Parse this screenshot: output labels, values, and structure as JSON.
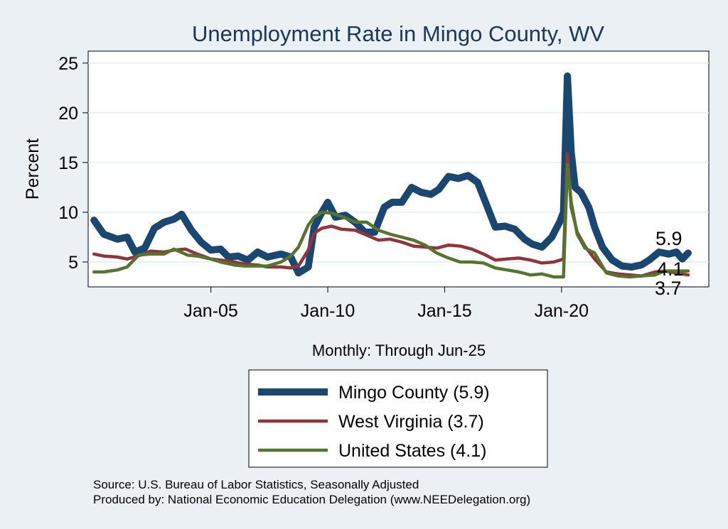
{
  "chart_data": {
    "type": "line",
    "title": "Unemployment Rate in Mingo  County, WV",
    "ylabel": "Percent",
    "xlabel": "Monthly: Through Jun-25",
    "ylim": [
      2.5,
      26.2
    ],
    "y_ticks": [
      5,
      10,
      15,
      20,
      25
    ],
    "x_ticks": [
      "Jan-05",
      "Jan-10",
      "Jan-15",
      "Jan-20"
    ],
    "x_range": [
      "2000-01",
      "2025-06"
    ],
    "grid": true,
    "legend_position": "bottom",
    "series": [
      {
        "name": "Mingo  County (5.9)",
        "color": "#1a476f",
        "end_label": "5.9",
        "points": [
          [
            "2000-01",
            9.2
          ],
          [
            "2000-06",
            7.8
          ],
          [
            "2001-01",
            7.3
          ],
          [
            "2001-06",
            7.5
          ],
          [
            "2001-10",
            6.0
          ],
          [
            "2002-03",
            6.4
          ],
          [
            "2002-08",
            8.4
          ],
          [
            "2003-01",
            9.0
          ],
          [
            "2003-06",
            9.3
          ],
          [
            "2003-10",
            9.8
          ],
          [
            "2004-03",
            8.2
          ],
          [
            "2004-08",
            7.0
          ],
          [
            "2005-01",
            6.2
          ],
          [
            "2005-06",
            6.3
          ],
          [
            "2005-10",
            5.5
          ],
          [
            "2006-03",
            5.6
          ],
          [
            "2006-08",
            5.2
          ],
          [
            "2007-01",
            6.0
          ],
          [
            "2007-06",
            5.5
          ],
          [
            "2008-01",
            5.8
          ],
          [
            "2008-06",
            5.5
          ],
          [
            "2008-10",
            3.9
          ],
          [
            "2009-03",
            4.5
          ],
          [
            "2009-06",
            8.5
          ],
          [
            "2009-10",
            10.0
          ],
          [
            "2010-01",
            11.0
          ],
          [
            "2010-05",
            9.5
          ],
          [
            "2010-10",
            9.7
          ],
          [
            "2011-03",
            9.0
          ],
          [
            "2011-08",
            8.0
          ],
          [
            "2012-01",
            8.0
          ],
          [
            "2012-06",
            10.5
          ],
          [
            "2012-10",
            11.0
          ],
          [
            "2013-03",
            11.0
          ],
          [
            "2013-08",
            12.5
          ],
          [
            "2014-01",
            12.0
          ],
          [
            "2014-06",
            11.8
          ],
          [
            "2014-10",
            12.3
          ],
          [
            "2015-03",
            13.6
          ],
          [
            "2015-08",
            13.4
          ],
          [
            "2016-01",
            13.7
          ],
          [
            "2016-06",
            13.0
          ],
          [
            "2016-10",
            11.0
          ],
          [
            "2017-03",
            8.5
          ],
          [
            "2017-08",
            8.6
          ],
          [
            "2018-01",
            8.3
          ],
          [
            "2018-06",
            7.3
          ],
          [
            "2018-10",
            6.8
          ],
          [
            "2019-03",
            6.5
          ],
          [
            "2019-08",
            7.5
          ],
          [
            "2019-12",
            9.0
          ],
          [
            "2020-02",
            10.0
          ],
          [
            "2020-04",
            23.7
          ],
          [
            "2020-06",
            16.0
          ],
          [
            "2020-08",
            12.5
          ],
          [
            "2020-11",
            12.0
          ],
          [
            "2021-03",
            10.5
          ],
          [
            "2021-06",
            8.5
          ],
          [
            "2021-10",
            6.5
          ],
          [
            "2022-03",
            5.2
          ],
          [
            "2022-08",
            4.6
          ],
          [
            "2023-01",
            4.5
          ],
          [
            "2023-06",
            4.7
          ],
          [
            "2023-10",
            5.2
          ],
          [
            "2024-03",
            6.0
          ],
          [
            "2024-08",
            5.8
          ],
          [
            "2024-12",
            6.0
          ],
          [
            "2025-03",
            5.3
          ],
          [
            "2025-06",
            5.9
          ]
        ]
      },
      {
        "name": "West Virginia (3.7)",
        "color": "#90353b",
        "end_label": "3.7",
        "points": [
          [
            "2000-01",
            5.8
          ],
          [
            "2000-06",
            5.6
          ],
          [
            "2001-01",
            5.5
          ],
          [
            "2001-06",
            5.3
          ],
          [
            "2002-01",
            5.7
          ],
          [
            "2002-06",
            6.1
          ],
          [
            "2003-01",
            6.0
          ],
          [
            "2003-06",
            6.2
          ],
          [
            "2003-12",
            6.3
          ],
          [
            "2004-06",
            5.8
          ],
          [
            "2005-01",
            5.3
          ],
          [
            "2005-06",
            5.2
          ],
          [
            "2006-01",
            5.0
          ],
          [
            "2006-06",
            4.8
          ],
          [
            "2007-01",
            4.7
          ],
          [
            "2007-06",
            4.5
          ],
          [
            "2008-01",
            4.5
          ],
          [
            "2008-06",
            4.4
          ],
          [
            "2008-10",
            4.6
          ],
          [
            "2009-03",
            6.2
          ],
          [
            "2009-06",
            7.9
          ],
          [
            "2009-10",
            8.4
          ],
          [
            "2010-03",
            8.6
          ],
          [
            "2010-08",
            8.3
          ],
          [
            "2011-03",
            8.2
          ],
          [
            "2011-09",
            7.7
          ],
          [
            "2012-03",
            7.2
          ],
          [
            "2012-09",
            7.3
          ],
          [
            "2013-03",
            7.0
          ],
          [
            "2013-09",
            6.6
          ],
          [
            "2014-03",
            6.5
          ],
          [
            "2014-09",
            6.4
          ],
          [
            "2015-03",
            6.7
          ],
          [
            "2015-09",
            6.6
          ],
          [
            "2016-03",
            6.3
          ],
          [
            "2016-09",
            5.8
          ],
          [
            "2017-03",
            5.2
          ],
          [
            "2017-09",
            5.3
          ],
          [
            "2018-03",
            5.4
          ],
          [
            "2018-09",
            5.2
          ],
          [
            "2019-03",
            4.9
          ],
          [
            "2019-09",
            5.0
          ],
          [
            "2020-02",
            5.3
          ],
          [
            "2020-04",
            15.9
          ],
          [
            "2020-06",
            10.5
          ],
          [
            "2020-09",
            8.0
          ],
          [
            "2021-01",
            6.6
          ],
          [
            "2021-06",
            5.3
          ],
          [
            "2021-12",
            4.0
          ],
          [
            "2022-06",
            3.8
          ],
          [
            "2022-12",
            3.7
          ],
          [
            "2023-06",
            3.6
          ],
          [
            "2024-01",
            4.0
          ],
          [
            "2024-06",
            4.1
          ],
          [
            "2024-12",
            3.9
          ],
          [
            "2025-06",
            3.7
          ]
        ]
      },
      {
        "name": "United States (4.1)",
        "color": "#55752f",
        "end_label": "4.1",
        "points": [
          [
            "2000-01",
            4.0
          ],
          [
            "2000-06",
            4.0
          ],
          [
            "2001-01",
            4.2
          ],
          [
            "2001-06",
            4.5
          ],
          [
            "2001-12",
            5.7
          ],
          [
            "2002-06",
            5.8
          ],
          [
            "2003-01",
            5.8
          ],
          [
            "2003-06",
            6.3
          ],
          [
            "2004-01",
            5.7
          ],
          [
            "2004-06",
            5.6
          ],
          [
            "2005-01",
            5.3
          ],
          [
            "2005-06",
            5.0
          ],
          [
            "2006-01",
            4.7
          ],
          [
            "2006-06",
            4.6
          ],
          [
            "2007-01",
            4.6
          ],
          [
            "2007-06",
            4.6
          ],
          [
            "2008-01",
            5.0
          ],
          [
            "2008-06",
            5.6
          ],
          [
            "2008-10",
            6.5
          ],
          [
            "2009-03",
            8.7
          ],
          [
            "2009-06",
            9.5
          ],
          [
            "2009-10",
            10.0
          ],
          [
            "2010-03",
            9.9
          ],
          [
            "2010-09",
            9.5
          ],
          [
            "2011-03",
            9.0
          ],
          [
            "2011-09",
            9.0
          ],
          [
            "2012-03",
            8.2
          ],
          [
            "2012-09",
            7.8
          ],
          [
            "2013-03",
            7.5
          ],
          [
            "2013-09",
            7.2
          ],
          [
            "2014-03",
            6.7
          ],
          [
            "2014-09",
            5.9
          ],
          [
            "2015-03",
            5.4
          ],
          [
            "2015-09",
            5.0
          ],
          [
            "2016-03",
            5.0
          ],
          [
            "2016-09",
            4.9
          ],
          [
            "2017-03",
            4.4
          ],
          [
            "2017-09",
            4.2
          ],
          [
            "2018-03",
            4.0
          ],
          [
            "2018-09",
            3.7
          ],
          [
            "2019-03",
            3.8
          ],
          [
            "2019-09",
            3.5
          ],
          [
            "2020-02",
            3.5
          ],
          [
            "2020-04",
            14.8
          ],
          [
            "2020-06",
            11.0
          ],
          [
            "2020-09",
            7.8
          ],
          [
            "2021-01",
            6.4
          ],
          [
            "2021-06",
            5.9
          ],
          [
            "2021-12",
            3.9
          ],
          [
            "2022-06",
            3.6
          ],
          [
            "2022-12",
            3.5
          ],
          [
            "2023-06",
            3.6
          ],
          [
            "2024-01",
            3.7
          ],
          [
            "2024-06",
            4.1
          ],
          [
            "2024-12",
            4.1
          ],
          [
            "2025-06",
            4.1
          ]
        ]
      }
    ]
  },
  "footer": {
    "source": "Source: U.S. Bureau of Labor Statistics, Seasonally Adjusted",
    "produced_by": "Produced by: National Economic Education Delegation (www.NEEDelegation.org)"
  }
}
